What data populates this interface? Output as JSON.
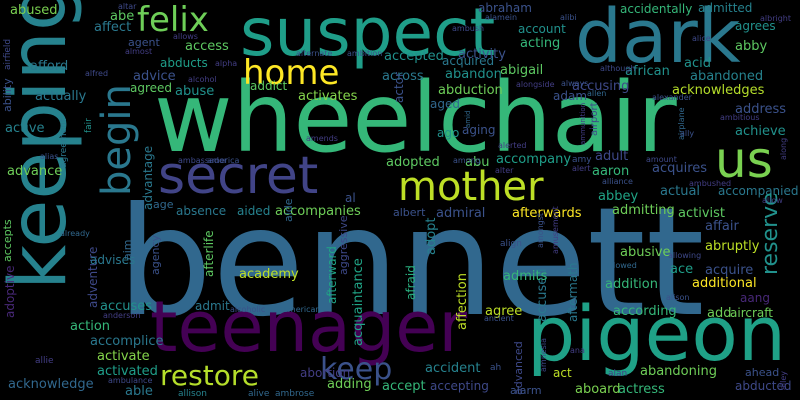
{
  "background": "#000000",
  "words": [
    {
      "text": "bennett",
      "color": "#31688e"
    },
    {
      "text": "wheelchair",
      "color": "#35b779"
    },
    {
      "text": "keeping",
      "color": "#26828e"
    },
    {
      "text": "teenager",
      "color": "#440154"
    },
    {
      "text": "pigeon",
      "color": "#1fa187"
    },
    {
      "text": "suspect",
      "color": "#1f9e89"
    },
    {
      "text": "dark",
      "color": "#2a788e"
    },
    {
      "text": "secret",
      "color": "#414487"
    },
    {
      "text": "mother",
      "color": "#bddf26"
    },
    {
      "text": "us",
      "color": "#7ad151"
    },
    {
      "text": "begin",
      "color": "#2a788e"
    },
    {
      "text": "felix",
      "color": "#6ece58"
    },
    {
      "text": "home",
      "color": "#fde725"
    },
    {
      "text": "restore",
      "color": "#b5de2b"
    },
    {
      "text": "keep",
      "color": "#3b528b"
    },
    {
      "text": "abused",
      "color": "#7ad151"
    },
    {
      "text": "abe",
      "color": "#5ec962"
    },
    {
      "text": "affect",
      "color": "#2a788e"
    },
    {
      "text": "agent",
      "color": "#3b528b"
    },
    {
      "text": "access",
      "color": "#5ec962"
    },
    {
      "text": "abducts",
      "color": "#1f9e89"
    },
    {
      "text": "advice",
      "color": "#3b528b"
    },
    {
      "text": "agreed",
      "color": "#5ec962"
    },
    {
      "text": "abuse",
      "color": "#21918c"
    },
    {
      "text": "addict",
      "color": "#5ec962"
    },
    {
      "text": "activates",
      "color": "#84d44b"
    },
    {
      "text": "afford",
      "color": "#2a788e"
    },
    {
      "text": "actually",
      "color": "#2a788e"
    },
    {
      "text": "ability",
      "color": "#3b528b"
    },
    {
      "text": "active",
      "color": "#26828e"
    },
    {
      "text": "advance",
      "color": "#6ece58"
    },
    {
      "text": "accepts",
      "color": "#5ec962"
    },
    {
      "text": "adoptive",
      "color": "#482878"
    },
    {
      "text": "accuses",
      "color": "#21918c"
    },
    {
      "text": "accomplice",
      "color": "#2a788e"
    },
    {
      "text": "action",
      "color": "#35b779"
    },
    {
      "text": "activate",
      "color": "#84d44b"
    },
    {
      "text": "activated",
      "color": "#1f9e89"
    },
    {
      "text": "acknowledge",
      "color": "#31688e"
    },
    {
      "text": "able",
      "color": "#2a788e"
    },
    {
      "text": "admit",
      "color": "#2a788e"
    },
    {
      "text": "academy",
      "color": "#bddf26"
    },
    {
      "text": "accompanies",
      "color": "#6ece58"
    },
    {
      "text": "afterward",
      "color": "#20a486"
    },
    {
      "text": "acquaintance",
      "color": "#20a486"
    },
    {
      "text": "afraid",
      "color": "#29af7f"
    },
    {
      "text": "accused",
      "color": "#2a788e"
    },
    {
      "text": "accident",
      "color": "#26828e"
    },
    {
      "text": "accept",
      "color": "#35b779"
    },
    {
      "text": "accepting",
      "color": "#3e4989"
    },
    {
      "text": "act",
      "color": "#bddf26"
    },
    {
      "text": "aboard",
      "color": "#7ad151"
    },
    {
      "text": "actress",
      "color": "#35b779"
    },
    {
      "text": "abandoning",
      "color": "#6ece58"
    },
    {
      "text": "abducted",
      "color": "#3e4989"
    },
    {
      "text": "abortion",
      "color": "#433e85"
    },
    {
      "text": "adding",
      "color": "#6ece58"
    },
    {
      "text": "adopted",
      "color": "#5ec962"
    },
    {
      "text": "abu",
      "color": "#5ec962"
    },
    {
      "text": "accompany",
      "color": "#1f9e89"
    },
    {
      "text": "aaron",
      "color": "#35b779"
    },
    {
      "text": "abbey",
      "color": "#20a486"
    },
    {
      "text": "acquires",
      "color": "#3b528b"
    },
    {
      "text": "actual",
      "color": "#2a788e"
    },
    {
      "text": "accompanied",
      "color": "#2a788e"
    },
    {
      "text": "activist",
      "color": "#5ec962"
    },
    {
      "text": "affair",
      "color": "#3b528b"
    },
    {
      "text": "abusive",
      "color": "#6ece58"
    },
    {
      "text": "abruptly",
      "color": "#bddf26"
    },
    {
      "text": "acquire",
      "color": "#3b528b"
    },
    {
      "text": "ace",
      "color": "#1f9e89"
    },
    {
      "text": "addition",
      "color": "#35b779"
    },
    {
      "text": "additional",
      "color": "#fde725"
    },
    {
      "text": "according",
      "color": "#35b779"
    },
    {
      "text": "add",
      "color": "#6ece58"
    },
    {
      "text": "aircraft",
      "color": "#6ece58"
    },
    {
      "text": "admits",
      "color": "#35b779"
    },
    {
      "text": "affection",
      "color": "#bddf26"
    },
    {
      "text": "adopt",
      "color": "#26828e"
    },
    {
      "text": "agree",
      "color": "#bddf26"
    },
    {
      "text": "reserve",
      "color": "#21918c"
    },
    {
      "text": "afterlife",
      "color": "#5ec962"
    },
    {
      "text": "afterwards",
      "color": "#fde725"
    },
    {
      "text": "admiral",
      "color": "#3b528b"
    },
    {
      "text": "albert",
      "color": "#3b528b"
    },
    {
      "text": "admitting",
      "color": "#6ece58"
    },
    {
      "text": "abby",
      "color": "#5ec962"
    },
    {
      "text": "achieve",
      "color": "#21918c"
    },
    {
      "text": "address",
      "color": "#3b528b"
    },
    {
      "text": "acknowledges",
      "color": "#b5de2b"
    },
    {
      "text": "abandoned",
      "color": "#26828e"
    },
    {
      "text": "acid",
      "color": "#21918c"
    },
    {
      "text": "african",
      "color": "#21918c"
    },
    {
      "text": "abigail",
      "color": "#5ec962"
    },
    {
      "text": "abandon",
      "color": "#21918c"
    },
    {
      "text": "acquired",
      "color": "#2a788e"
    },
    {
      "text": "accepted",
      "color": "#21918c"
    },
    {
      "text": "activity",
      "color": "#3b528b"
    },
    {
      "text": "acting",
      "color": "#35b779"
    },
    {
      "text": "account",
      "color": "#21918c"
    },
    {
      "text": "across",
      "color": "#2a788e"
    },
    {
      "text": "abduction",
      "color": "#6ece58"
    },
    {
      "text": "accusing",
      "color": "#3e4989"
    },
    {
      "text": "adam",
      "color": "#3b528b"
    },
    {
      "text": "aged",
      "color": "#31688e"
    },
    {
      "text": "aging",
      "color": "#3b528b"
    },
    {
      "text": "ago",
      "color": "#21918c"
    },
    {
      "text": "actor",
      "color": "#3b528b"
    },
    {
      "text": "adult",
      "color": "#3e4989"
    },
    {
      "text": "abraham",
      "color": "#3b528b"
    },
    {
      "text": "accidentally",
      "color": "#35b779"
    },
    {
      "text": "admitted",
      "color": "#26828e"
    },
    {
      "text": "agrees",
      "color": "#21918c"
    },
    {
      "text": "age",
      "color": "#31688e"
    },
    {
      "text": "absence",
      "color": "#2a788e"
    },
    {
      "text": "aided",
      "color": "#26828e"
    },
    {
      "text": "advantage",
      "color": "#2a788e"
    },
    {
      "text": "adventure",
      "color": "#3e4989"
    },
    {
      "text": "advises",
      "color": "#2a788e"
    },
    {
      "text": "aim",
      "color": "#31688e"
    },
    {
      "text": "agency",
      "color": "#3b528b"
    },
    {
      "text": "aggressive",
      "color": "#3e4989"
    },
    {
      "text": "aftermath",
      "color": "#2a788e"
    },
    {
      "text": "advanced",
      "color": "#3e4989"
    },
    {
      "text": "alarm",
      "color": "#3b528b"
    },
    {
      "text": "aang",
      "color": "#482878"
    },
    {
      "text": "ahead",
      "color": "#3b528b"
    },
    {
      "text": "alive",
      "color": "#31688e"
    },
    {
      "text": "ambrose",
      "color": "#31688e"
    },
    {
      "text": "allison",
      "color": "#26828e"
    },
    {
      "text": "ambulance",
      "color": "#3e4989"
    },
    {
      "text": "allie",
      "color": "#433e85"
    },
    {
      "text": "anderson",
      "color": "#433e85"
    },
    {
      "text": "alcoholic",
      "color": "#3b528b"
    },
    {
      "text": "american",
      "color": "#31688e"
    },
    {
      "text": "ancient",
      "color": "#3b528b"
    },
    {
      "text": "amnesia",
      "color": "#3e4989"
    },
    {
      "text": "alan",
      "color": "#433e85"
    },
    {
      "text": "ah",
      "color": "#3b528b"
    },
    {
      "text": "ana",
      "color": "#433e85"
    },
    {
      "text": "alison",
      "color": "#3b528b"
    },
    {
      "text": "allowed",
      "color": "#31688e"
    },
    {
      "text": "allowing",
      "color": "#3e4989"
    },
    {
      "text": "align",
      "color": "#3b528b"
    },
    {
      "text": "amongst",
      "color": "#3b528b"
    },
    {
      "text": "amusement",
      "color": "#433e85"
    },
    {
      "text": "al",
      "color": "#3b528b"
    },
    {
      "text": "aide",
      "color": "#31688e"
    },
    {
      "text": "already",
      "color": "#31688e"
    },
    {
      "text": "agreement",
      "color": "#2a788e"
    },
    {
      "text": "fair",
      "color": "#21918c"
    },
    {
      "text": "alias",
      "color": "#3b528b"
    },
    {
      "text": "ambassador",
      "color": "#3e4989"
    },
    {
      "text": "america",
      "color": "#3b528b"
    },
    {
      "text": "among",
      "color": "#3b528b"
    },
    {
      "text": "alter",
      "color": "#433e85"
    },
    {
      "text": "alerted",
      "color": "#433e85"
    },
    {
      "text": "amy",
      "color": "#3b528b"
    },
    {
      "text": "alert",
      "color": "#433e85"
    },
    {
      "text": "alliance",
      "color": "#3b528b"
    },
    {
      "text": "amount",
      "color": "#3e4989"
    },
    {
      "text": "airplane",
      "color": "#31688e"
    },
    {
      "text": "ambushed",
      "color": "#433e85"
    },
    {
      "text": "allow",
      "color": "#433e85"
    },
    {
      "text": "along",
      "color": "#433e85"
    },
    {
      "text": "ally",
      "color": "#3b528b"
    },
    {
      "text": "ambitious",
      "color": "#433e85"
    },
    {
      "text": "airport",
      "color": "#3e4989"
    },
    {
      "text": "alexander",
      "color": "#3b528b"
    },
    {
      "text": "allen",
      "color": "#31688e"
    },
    {
      "text": "although",
      "color": "#3e4989"
    },
    {
      "text": "always",
      "color": "#3b528b"
    },
    {
      "text": "alongside",
      "color": "#433e85"
    },
    {
      "text": "ambush",
      "color": "#3e4989"
    },
    {
      "text": "alamein",
      "color": "#3b528b"
    },
    {
      "text": "alibi",
      "color": "#3b528b"
    },
    {
      "text": "alice",
      "color": "#3e4989"
    },
    {
      "text": "albright",
      "color": "#433e85"
    },
    {
      "text": "amid",
      "color": "#31688e"
    },
    {
      "text": "ammunition",
      "color": "#433e85"
    },
    {
      "text": "amends",
      "color": "#433e85"
    },
    {
      "text": "alpha",
      "color": "#433e85"
    },
    {
      "text": "alcohol",
      "color": "#433e85"
    },
    {
      "text": "alfred",
      "color": "#3e4989"
    },
    {
      "text": "almost",
      "color": "#433e85"
    },
    {
      "text": "allows",
      "color": "#433e85"
    },
    {
      "text": "altar",
      "color": "#3e4989"
    },
    {
      "text": "alternate",
      "color": "#3b528b"
    },
    {
      "text": "ambition",
      "color": "#3b528b"
    },
    {
      "text": "airfield",
      "color": "#3e4989"
    },
    {
      "text": "alley",
      "color": "#433e85"
    }
  ]
}
